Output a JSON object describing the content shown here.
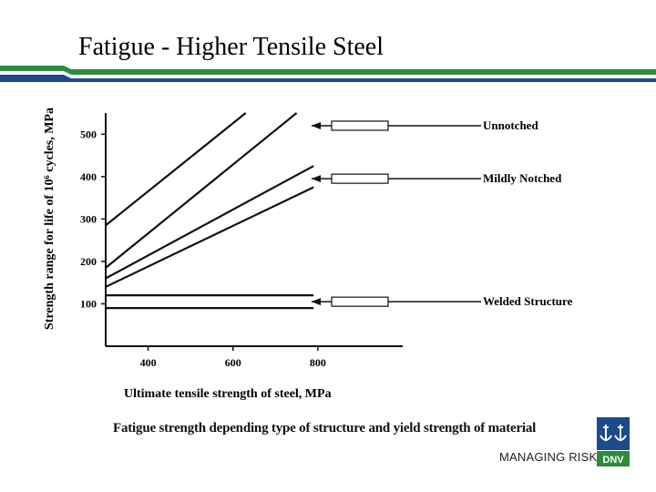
{
  "slide": {
    "title": "Fatigue - Higher Tensile Steel",
    "caption": "Fatigue strength depending type of structure and yield strength of material",
    "tagline": "MANAGING RISK",
    "logo_text": "DNV",
    "colors": {
      "header_green": "#2e8b3e",
      "header_blue": "#1c4a8c",
      "logo_blue": "#1c4a8c",
      "logo_green": "#2e8b3e"
    }
  },
  "chart_data": {
    "type": "line",
    "xlabel": "Ultimate tensile strength of steel, MPa",
    "ylabel": "Strength range for life of 10⁶ cycles, MPa",
    "x_ticks": [
      400,
      600,
      800
    ],
    "y_ticks": [
      100,
      200,
      300,
      400,
      500
    ],
    "xlim": [
      300,
      1000
    ],
    "ylim": [
      0,
      550
    ],
    "series": [
      {
        "x": [
          300,
          630
        ],
        "y": [
          285,
          550
        ]
      },
      {
        "x": [
          300,
          750
        ],
        "y": [
          185,
          550
        ]
      },
      {
        "x": [
          300,
          790
        ],
        "y": [
          160,
          425
        ]
      },
      {
        "x": [
          300,
          790
        ],
        "y": [
          140,
          375
        ]
      },
      {
        "x": [
          300,
          790
        ],
        "y": [
          120,
          120
        ]
      },
      {
        "x": [
          300,
          790
        ],
        "y": [
          90,
          90
        ]
      }
    ],
    "annotations": [
      {
        "label": "Unnotched",
        "y": 520
      },
      {
        "label": "Mildly Notched",
        "y": 395
      },
      {
        "label": "Welded Structure",
        "y": 105
      }
    ]
  }
}
